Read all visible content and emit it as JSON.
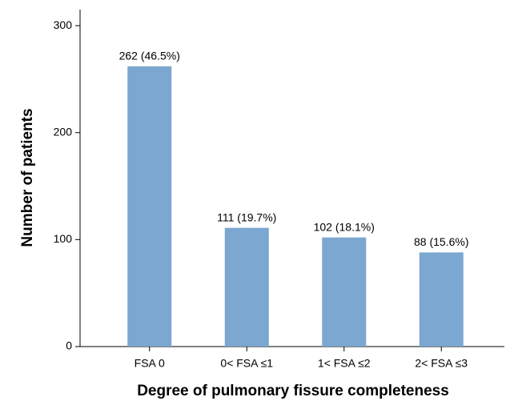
{
  "chart_data": {
    "type": "bar",
    "x_label": "Degree of pulmonary fissure completeness",
    "y_label": "Number of patients",
    "categories": [
      "FSA 0",
      "0< FSA ≤1",
      "1< FSA ≤2",
      "2< FSA ≤3"
    ],
    "values": [
      262,
      111,
      102,
      88
    ],
    "value_labels": [
      "262 (46.5%)",
      "111 (19.7%)",
      "102 (18.1%)",
      "88 (15.6%)"
    ],
    "color": "#7ba7d0",
    "ylim": [
      0,
      315
    ],
    "yticks": [
      0,
      100,
      200,
      300
    ],
    "grid": false
  }
}
